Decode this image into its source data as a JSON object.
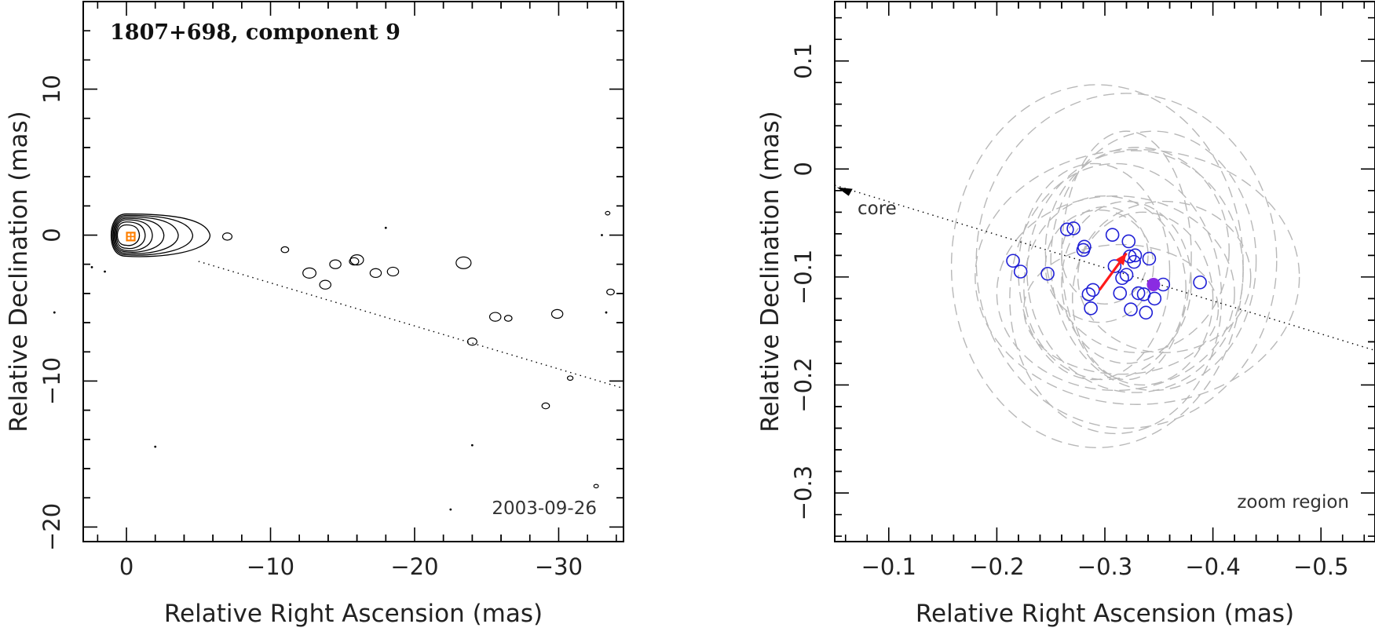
{
  "chart_data": [
    {
      "panel": "left",
      "type": "contour",
      "title": "1807+698, component 9",
      "date": "2003-09-26",
      "xlabel": "Relative Right Ascension (mas)",
      "ylabel": "Relative Declination (mas)",
      "xlim": [
        3,
        -34.5
      ],
      "ylim": [
        -21,
        16
      ],
      "xticks": [
        0,
        -10,
        -20,
        -30
      ],
      "xtick_labels": [
        "0",
        "−10",
        "−20",
        "−30"
      ],
      "yticks": [
        10,
        0,
        -10,
        -20
      ],
      "ytick_labels": [
        "10",
        "0",
        "−10",
        "−20"
      ],
      "core_marker": {
        "x": -0.3,
        "y": -0.1,
        "color": "#ff7f00"
      },
      "dotted_line": {
        "from": [
          -5,
          -1.8
        ],
        "to": [
          -34.5,
          -10.5
        ]
      },
      "contour_center": [
        0,
        0
      ],
      "contour_levels": [
        {
          "a": 0.9,
          "b": 0.7
        },
        {
          "a": 1.3,
          "b": 0.9
        },
        {
          "a": 1.8,
          "b": 1.05
        },
        {
          "a": 2.6,
          "b": 1.15
        },
        {
          "a": 3.6,
          "b": 1.25
        },
        {
          "a": 4.6,
          "b": 1.35
        },
        {
          "a": 5.8,
          "b": 1.45
        }
      ],
      "blobs": [
        {
          "x": -7.0,
          "y": -0.1,
          "r": 0.25
        },
        {
          "x": -11.0,
          "y": -1.0,
          "r": 0.2
        },
        {
          "x": -12.7,
          "y": -2.6,
          "r": 0.35
        },
        {
          "x": -13.8,
          "y": -3.4,
          "r": 0.3
        },
        {
          "x": -14.5,
          "y": -2.0,
          "r": 0.3
        },
        {
          "x": -15.8,
          "y": -1.8,
          "r": 0.25
        },
        {
          "x": -16.0,
          "y": -1.7,
          "r": 0.35
        },
        {
          "x": -17.3,
          "y": -2.6,
          "r": 0.3
        },
        {
          "x": -18.5,
          "y": -2.5,
          "r": 0.3
        },
        {
          "x": -23.4,
          "y": -1.9,
          "r": 0.4
        },
        {
          "x": -24.0,
          "y": -7.3,
          "r": 0.25
        },
        {
          "x": -25.6,
          "y": -5.6,
          "r": 0.3
        },
        {
          "x": -26.5,
          "y": -5.7,
          "r": 0.2
        },
        {
          "x": -29.9,
          "y": -5.4,
          "r": 0.3
        },
        {
          "x": -29.1,
          "y": -11.7,
          "r": 0.2
        },
        {
          "x": -30.8,
          "y": -9.8,
          "r": 0.15
        },
        {
          "x": -33.4,
          "y": 1.5,
          "r": 0.12
        },
        {
          "x": -33.6,
          "y": -3.9,
          "r": 0.2
        },
        {
          "x": -32.6,
          "y": -17.2,
          "r": 0.12
        }
      ],
      "specks": [
        {
          "x": 2.4,
          "y": -2.2
        },
        {
          "x": 1.5,
          "y": -2.5
        },
        {
          "x": 5.0,
          "y": -5.3
        },
        {
          "x": -18.0,
          "y": 0.5
        },
        {
          "x": -2.0,
          "y": -14.5
        },
        {
          "x": -24.0,
          "y": -14.4
        },
        {
          "x": -22.5,
          "y": -18.8
        },
        {
          "x": -33.3,
          "y": -5.3
        },
        {
          "x": -33.0,
          "y": 0.0
        }
      ]
    },
    {
      "panel": "right",
      "type": "scatter",
      "note": "zoom region",
      "core_label": "core",
      "xlabel": "Relative Right Ascension (mas)",
      "ylabel": "Relative Declination (mas)",
      "xlim": [
        -0.05,
        -0.55
      ],
      "ylim": [
        -0.345,
        0.155
      ],
      "xticks": [
        -0.1,
        -0.2,
        -0.3,
        -0.4,
        -0.5
      ],
      "xtick_labels": [
        "−0.1",
        "−0.2",
        "−0.3",
        "−0.4",
        "−0.5"
      ],
      "yticks": [
        0.1,
        0,
        -0.1,
        -0.2,
        -0.3
      ],
      "ytick_labels": [
        "0.1",
        "0",
        "−0.1",
        "−0.2",
        "−0.3"
      ],
      "dotted_line": {
        "from": [
          -0.05,
          -0.015
        ],
        "to": [
          -0.55,
          -0.168
        ]
      },
      "points": [
        {
          "x": -0.215,
          "y": -0.085
        },
        {
          "x": -0.222,
          "y": -0.095
        },
        {
          "x": -0.247,
          "y": -0.097
        },
        {
          "x": -0.265,
          "y": -0.056
        },
        {
          "x": -0.271,
          "y": -0.055
        },
        {
          "x": -0.28,
          "y": -0.075
        },
        {
          "x": -0.281,
          "y": -0.072
        },
        {
          "x": -0.285,
          "y": -0.116
        },
        {
          "x": -0.287,
          "y": -0.129
        },
        {
          "x": -0.289,
          "y": -0.112
        },
        {
          "x": -0.307,
          "y": -0.061
        },
        {
          "x": -0.309,
          "y": -0.09
        },
        {
          "x": -0.314,
          "y": -0.115
        },
        {
          "x": -0.316,
          "y": -0.101
        },
        {
          "x": -0.32,
          "y": -0.098
        },
        {
          "x": -0.322,
          "y": -0.067
        },
        {
          "x": -0.323,
          "y": -0.081
        },
        {
          "x": -0.324,
          "y": -0.13
        },
        {
          "x": -0.327,
          "y": -0.086
        },
        {
          "x": -0.328,
          "y": -0.08
        },
        {
          "x": -0.331,
          "y": -0.115
        },
        {
          "x": -0.336,
          "y": -0.116
        },
        {
          "x": -0.338,
          "y": -0.133
        },
        {
          "x": -0.341,
          "y": -0.083
        },
        {
          "x": -0.346,
          "y": -0.12
        },
        {
          "x": -0.354,
          "y": -0.107
        },
        {
          "x": -0.388,
          "y": -0.105
        }
      ],
      "mean_point": {
        "x": -0.345,
        "y": -0.107,
        "color": "#8a2be2"
      },
      "arrow": {
        "from": [
          -0.295,
          -0.112
        ],
        "to": [
          -0.32,
          -0.078
        ],
        "color": "#ff1a1a"
      },
      "core_arrow_tip": [
        -0.052,
        -0.017
      ],
      "ellipses": [
        {
          "x": -0.293,
          "y": -0.09,
          "rx": 0.135,
          "ry": 0.168
        },
        {
          "x": -0.32,
          "y": -0.085,
          "rx": 0.139,
          "ry": 0.155
        },
        {
          "x": -0.33,
          "y": -0.1,
          "rx": 0.15,
          "ry": 0.118
        },
        {
          "x": -0.31,
          "y": -0.12,
          "rx": 0.098,
          "ry": 0.125
        },
        {
          "x": -0.328,
          "y": -0.095,
          "rx": 0.1,
          "ry": 0.112
        },
        {
          "x": -0.32,
          "y": -0.105,
          "rx": 0.06,
          "ry": 0.075
        },
        {
          "x": -0.295,
          "y": -0.09,
          "rx": 0.05,
          "ry": 0.052
        },
        {
          "x": -0.33,
          "y": -0.075,
          "rx": 0.085,
          "ry": 0.095
        },
        {
          "x": -0.3,
          "y": -0.11,
          "rx": 0.075,
          "ry": 0.085
        },
        {
          "x": -0.345,
          "y": -0.085,
          "rx": 0.095,
          "ry": 0.12
        },
        {
          "x": -0.31,
          "y": -0.115,
          "rx": 0.11,
          "ry": 0.09
        },
        {
          "x": -0.335,
          "y": -0.12,
          "rx": 0.065,
          "ry": 0.08
        },
        {
          "x": -0.29,
          "y": -0.095,
          "rx": 0.07,
          "ry": 0.1
        },
        {
          "x": -0.355,
          "y": -0.1,
          "rx": 0.08,
          "ry": 0.07
        },
        {
          "x": -0.32,
          "y": -0.08,
          "rx": 0.06,
          "ry": 0.115
        },
        {
          "x": -0.315,
          "y": -0.13,
          "rx": 0.09,
          "ry": 0.06
        },
        {
          "x": -0.3,
          "y": -0.08,
          "rx": 0.04,
          "ry": 0.045
        }
      ]
    }
  ]
}
